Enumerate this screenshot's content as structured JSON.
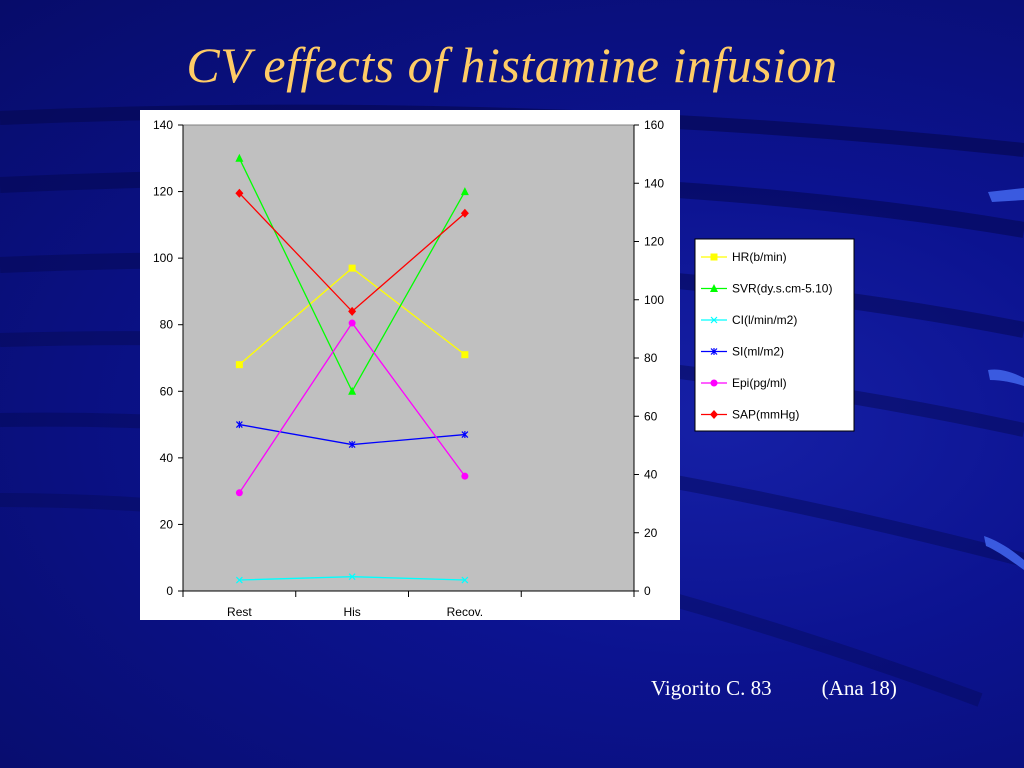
{
  "slide": {
    "title": "CV effects of histamine infusion",
    "footer_citation": "Vigorito C. 83",
    "footer_ref": "(Ana 18)"
  },
  "chart_data": {
    "type": "line",
    "categories": [
      "Rest",
      "His",
      "Recov."
    ],
    "y_left": {
      "min": 0,
      "max": 140,
      "ticks": [
        0,
        20,
        40,
        60,
        80,
        100,
        120,
        140
      ]
    },
    "y_right": {
      "min": 0,
      "max": 160,
      "ticks": [
        0,
        20,
        40,
        60,
        80,
        100,
        120,
        140,
        160
      ]
    },
    "grid": false,
    "legend_position": "right",
    "plot_background": "#c0c0c0",
    "series": [
      {
        "name": "HR(b/min)",
        "color": "#ffff00",
        "marker": "square",
        "values": [
          68,
          97,
          71
        ]
      },
      {
        "name": "SVR(dy.s.cm-5.10)",
        "color": "#00ff00",
        "marker": "triangle",
        "values": [
          130,
          60,
          120
        ]
      },
      {
        "name": "CI(l/min/m2)",
        "color": "#00ffff",
        "marker": "x",
        "values": [
          3.3,
          4.3,
          3.3
        ]
      },
      {
        "name": "SI(ml/m2)",
        "color": "#0000ff",
        "marker": "asterisk",
        "values": [
          50,
          44,
          47
        ]
      },
      {
        "name": "Epi(pg/ml)",
        "color": "#ff00ff",
        "marker": "circle",
        "values": [
          29.5,
          80.5,
          34.5
        ]
      },
      {
        "name": "SAP(mmHg)",
        "color": "#ff0000",
        "marker": "diamond",
        "values": [
          119.5,
          84,
          113.5
        ]
      }
    ]
  }
}
